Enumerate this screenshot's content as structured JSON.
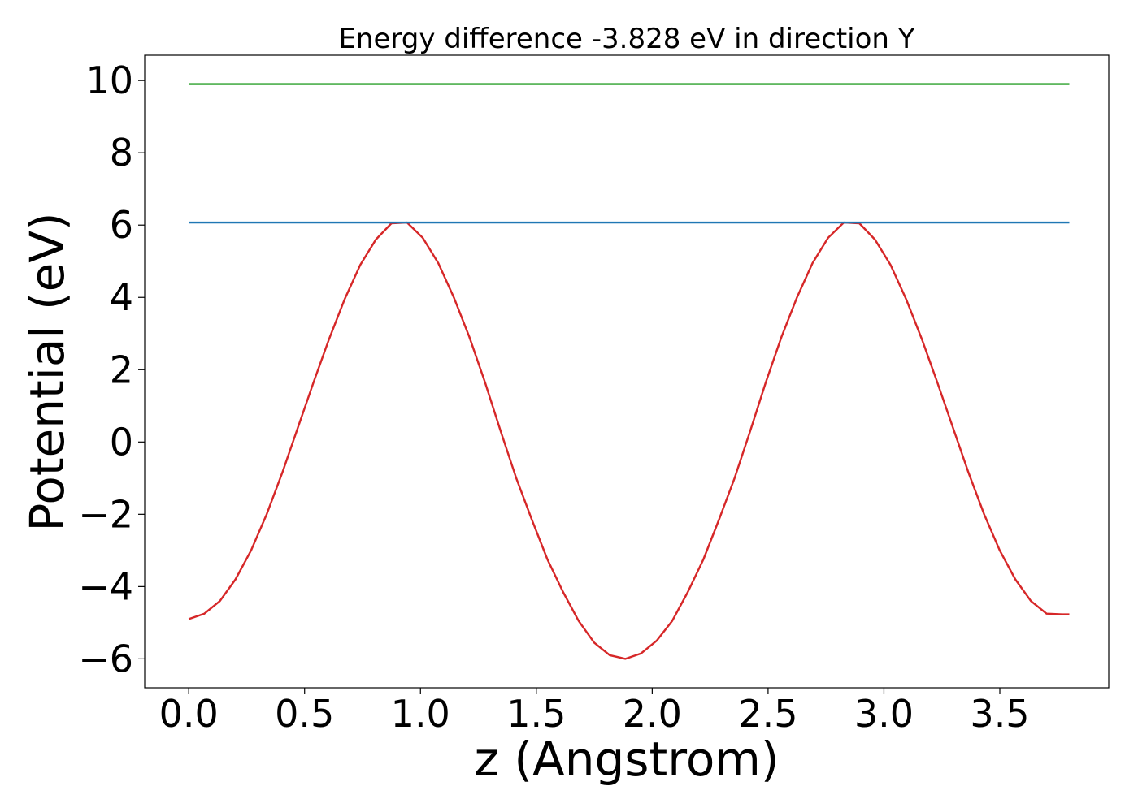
{
  "chart_data": {
    "type": "line",
    "title": "Energy difference -3.828 eV in direction Y",
    "xlabel": "z (Angstrom)",
    "ylabel": "Potential (eV)",
    "xlim": [
      -0.19,
      3.97
    ],
    "ylim": [
      -6.8,
      10.7
    ],
    "xticks": [
      0.0,
      0.5,
      1.0,
      1.5,
      2.0,
      2.5,
      3.0,
      3.5
    ],
    "xtick_labels": [
      "0.0",
      "0.5",
      "1.0",
      "1.5",
      "2.0",
      "2.5",
      "3.0",
      "3.5"
    ],
    "yticks": [
      -6,
      -4,
      -2,
      0,
      2,
      4,
      6,
      8,
      10
    ],
    "ytick_labels": [
      "−6",
      "−4",
      "−2",
      "0",
      "2",
      "4",
      "6",
      "8",
      "10"
    ],
    "grid": false,
    "series": [
      {
        "color": "#d62728",
        "x": [
          0.0,
          0.0673,
          0.1346,
          0.2019,
          0.2692,
          0.3365,
          0.4038,
          0.4711,
          0.5384,
          0.6057,
          0.673,
          0.7403,
          0.8076,
          0.8749,
          0.9422,
          1.0095,
          1.0768,
          1.1441,
          1.2114,
          1.2787,
          1.346,
          1.4133,
          1.4806,
          1.5479,
          1.6152,
          1.6825,
          1.7498,
          1.8171,
          1.8844,
          1.9517,
          2.019,
          2.0863,
          2.1536,
          2.2209,
          2.2882,
          2.3555,
          2.4228,
          2.4901,
          2.5574,
          2.6247,
          2.692,
          2.7593,
          2.8266,
          2.8939,
          2.9612,
          3.0285,
          3.0958,
          3.1631,
          3.2304,
          3.2977,
          3.365,
          3.4323,
          3.4996,
          3.5669,
          3.6342,
          3.7015,
          3.7688,
          3.8
        ],
        "y": [
          -4.9,
          -4.75,
          -4.4,
          -3.8,
          -3.0,
          -2.0,
          -0.85,
          0.4,
          1.65,
          2.85,
          3.95,
          4.9,
          5.6,
          6.05,
          6.07,
          5.65,
          4.95,
          4.0,
          2.9,
          1.65,
          0.3,
          -1.0,
          -2.15,
          -3.25,
          -4.15,
          -4.95,
          -5.55,
          -5.9,
          -6.0,
          -5.85,
          -5.5,
          -4.95,
          -4.15,
          -3.25,
          -2.15,
          -1.0,
          0.3,
          1.65,
          2.9,
          4.0,
          4.95,
          5.65,
          6.07,
          6.05,
          5.6,
          4.9,
          3.95,
          2.85,
          1.65,
          0.4,
          -0.85,
          -2.0,
          -3.0,
          -3.8,
          -4.4,
          -4.75,
          -4.77,
          -4.77
        ]
      },
      {
        "color": "#1f77b4",
        "x": [
          0.0,
          3.8
        ],
        "y": [
          6.07,
          6.07
        ]
      },
      {
        "color": "#2ca02c",
        "x": [
          0.0,
          3.8
        ],
        "y": [
          9.9,
          9.9
        ]
      }
    ]
  }
}
